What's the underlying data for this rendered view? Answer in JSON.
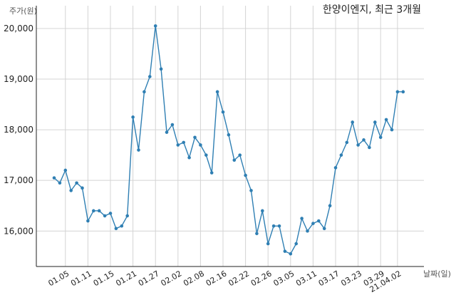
{
  "chart_data": {
    "type": "line",
    "title": "한양이엔지, 최근 3개월",
    "xlabel": "날짜(일)",
    "ylabel": "주가(원)",
    "ylim": [
      15300,
      20450
    ],
    "yticks": [
      16000,
      17000,
      18000,
      19000,
      20000
    ],
    "ytick_labels": [
      "16,000",
      "17,000",
      "18,000",
      "19,000",
      "20,000"
    ],
    "grid": true,
    "color": "#2f7fb3",
    "xticks": [
      {
        "index": 2,
        "label": "01.05"
      },
      {
        "index": 6,
        "label": "01.11"
      },
      {
        "index": 10,
        "label": "01.15"
      },
      {
        "index": 14,
        "label": "01.21"
      },
      {
        "index": 18,
        "label": "01.27"
      },
      {
        "index": 22,
        "label": "02.02"
      },
      {
        "index": 26,
        "label": "02.08"
      },
      {
        "index": 30,
        "label": "02.16"
      },
      {
        "index": 34,
        "label": "02.22"
      },
      {
        "index": 38,
        "label": "02.26"
      },
      {
        "index": 42,
        "label": "03.05"
      },
      {
        "index": 46,
        "label": "03.11"
      },
      {
        "index": 50,
        "label": "03.17"
      },
      {
        "index": 54,
        "label": "03.23"
      },
      {
        "index": 58,
        "label": "03.29"
      },
      {
        "index": 61,
        "label": "21.04.02"
      }
    ],
    "series": [
      {
        "values": [
          17050,
          16950,
          17200,
          16800,
          16950,
          16850,
          16200,
          16400,
          16400,
          16300,
          16350,
          16050,
          16100,
          16300,
          18250,
          17600,
          18750,
          19050,
          20050,
          19200,
          17950,
          18100,
          17700,
          17750,
          17450,
          17850,
          17700,
          17500,
          17150,
          18750,
          18350,
          17900,
          17400,
          17500,
          17100,
          16800,
          15950,
          16400,
          15750,
          16100,
          16100,
          15600,
          15550,
          15750,
          16250,
          16000,
          16150,
          16200,
          16050,
          16500,
          17250,
          17500,
          17750,
          18150,
          17700,
          17800,
          17650,
          18150,
          17850,
          18200,
          18000,
          18750,
          18750
        ]
      }
    ]
  }
}
